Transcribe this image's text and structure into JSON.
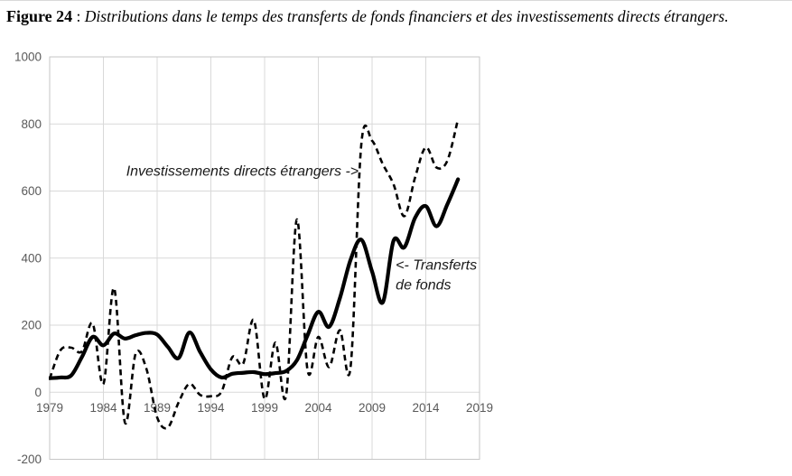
{
  "figure": {
    "label": "Figure 24",
    "separator": " : ",
    "caption": "Distributions dans le temps des transferts de fonds financiers et des investissements directs étrangers."
  },
  "chart_data": {
    "type": "line",
    "title": "",
    "xlabel": "",
    "ylabel": "",
    "xlim": [
      1979,
      2019
    ],
    "ylim": [
      -200,
      1000
    ],
    "grid": true,
    "legend_position": "none",
    "x_ticks": [
      1979,
      1984,
      1989,
      1994,
      1999,
      2004,
      2009,
      2014,
      2019
    ],
    "y_ticks": [
      -200,
      0,
      200,
      400,
      600,
      800,
      1000
    ],
    "x": [
      1979,
      1980,
      1981,
      1982,
      1983,
      1984,
      1985,
      1986,
      1987,
      1988,
      1989,
      1990,
      1991,
      1992,
      1993,
      1994,
      1995,
      1996,
      1997,
      1998,
      1999,
      2000,
      2001,
      2002,
      2003,
      2004,
      2005,
      2006,
      2007,
      2008,
      2009,
      2010,
      2011,
      2012,
      2013,
      2014,
      2015,
      2016,
      2017
    ],
    "series": [
      {
        "name": "Transferts de fonds",
        "line_style": "solid",
        "stroke_width": 4.2,
        "values": [
          42,
          44,
          50,
          105,
          165,
          140,
          175,
          160,
          170,
          177,
          172,
          135,
          102,
          178,
          120,
          68,
          44,
          55,
          58,
          60,
          54,
          57,
          63,
          95,
          170,
          240,
          195,
          280,
          395,
          455,
          360,
          268,
          452,
          432,
          520,
          555,
          495,
          560,
          635
        ]
      },
      {
        "name": "Investissements directs étrangers",
        "line_style": "dashed",
        "stroke_width": 2.6,
        "values": [
          40,
          125,
          133,
          122,
          205,
          25,
          310,
          -90,
          115,
          70,
          -75,
          -105,
          -30,
          25,
          -8,
          -12,
          2,
          105,
          85,
          215,
          -20,
          148,
          -10,
          515,
          65,
          165,
          75,
          185,
          75,
          740,
          750,
          680,
          620,
          525,
          640,
          730,
          670,
          690,
          815
        ]
      }
    ],
    "annotations": [
      {
        "id": "ide",
        "text_lines": [
          "Investissements directs étrangers ->"
        ],
        "x": 2007.75,
        "y": 660,
        "align": "end"
      },
      {
        "id": "transferts",
        "text_lines": [
          "<- Transferts",
          "de fonds"
        ],
        "x": 2011.2,
        "y": 380,
        "align": "start"
      }
    ],
    "colors": {
      "line": "#000000",
      "grid": "#d9d9d9",
      "plot_border": "#c6c6c6",
      "tick_label": "#595959",
      "annotation": "#1a1a1a",
      "background": "#ffffff"
    }
  }
}
